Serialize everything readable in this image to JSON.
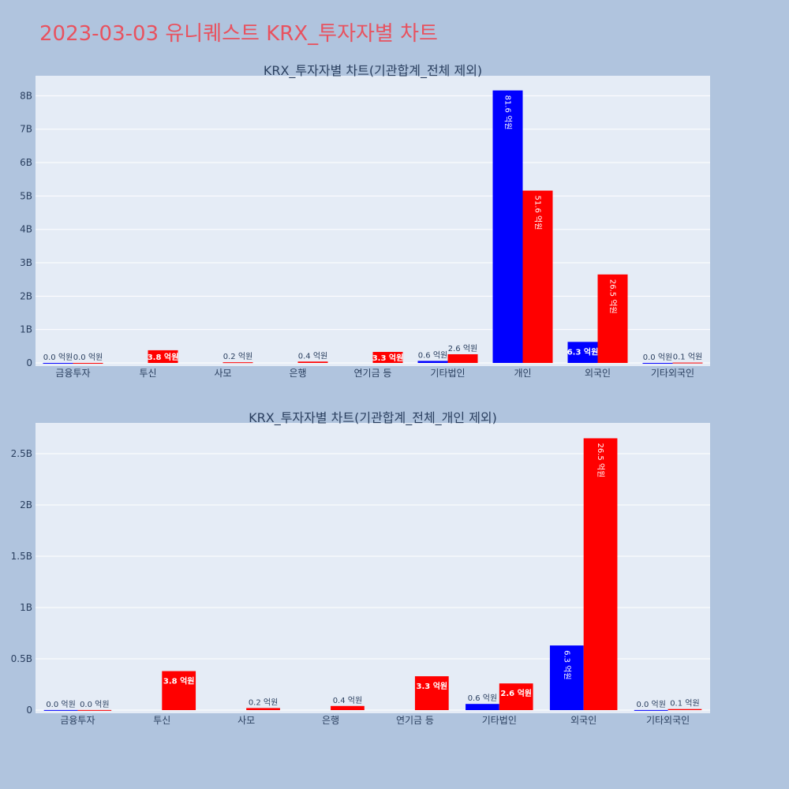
{
  "page": {
    "title": "2023-03-03 유니퀘스트 KRX_투자자별 차트"
  },
  "colors": {
    "background": "#b0c4de",
    "plot_bg": "#e5ecf6",
    "sell": "#0000ff",
    "buy": "#ff0000",
    "title": "#e8525f"
  },
  "chart_data": [
    {
      "type": "bar",
      "title": "KRX_투자자별 차트(기관합계_전체 제외)",
      "categories": [
        "금융투자",
        "투신",
        "사모",
        "은행",
        "연기금 등",
        "기타법인",
        "개인",
        "외국인",
        "기타외국인"
      ],
      "series": [
        {
          "color": "#0000ff",
          "values": [
            0.001,
            0,
            0,
            0,
            0,
            0.06,
            8.16,
            0.63,
            0.001
          ],
          "labels": [
            "0.0 억원",
            "",
            "",
            "",
            "",
            "0.6 억원",
            "81.6 억원",
            "6.3 억원",
            "0.0 억원"
          ]
        },
        {
          "color": "#ff0000",
          "values": [
            0.001,
            0.38,
            0.02,
            0.04,
            0.33,
            0.26,
            5.16,
            2.65,
            0.01
          ],
          "labels": [
            "0.0 억원",
            "3.8 억원",
            "0.2 억원",
            "0.4 억원",
            "3.3 억원",
            "2.6 억원",
            "51.6 억원",
            "26.5 억원",
            "0.1 억원"
          ]
        }
      ],
      "ylim": [
        0,
        8.6
      ],
      "yticks": [
        0,
        1,
        2,
        3,
        4,
        5,
        6,
        7,
        8
      ],
      "ytick_labels": [
        "0",
        "1B",
        "2B",
        "3B",
        "4B",
        "5B",
        "6B",
        "7B",
        "8B"
      ],
      "grid": true
    },
    {
      "type": "bar",
      "title": "KRX_투자자별 차트(기관합계_전체_개인 제외)",
      "categories": [
        "금융투자",
        "투신",
        "사모",
        "은행",
        "연기금 등",
        "기타법인",
        "외국인",
        "기타외국인"
      ],
      "series": [
        {
          "color": "#0000ff",
          "values": [
            0.001,
            0,
            0,
            0,
            0,
            0.06,
            0.63,
            0.001
          ],
          "labels": [
            "0.0 억원",
            "",
            "",
            "",
            "",
            "0.6 억원",
            "6.3 억원",
            "0.0 억원"
          ]
        },
        {
          "color": "#ff0000",
          "values": [
            0.001,
            0.38,
            0.02,
            0.04,
            0.33,
            0.26,
            2.65,
            0.01
          ],
          "labels": [
            "0.0 억원",
            "3.8 억원",
            "0.2 억원",
            "0.4 억원",
            "3.3 억원",
            "2.6 억원",
            "26.5 억원",
            "0.1 억원"
          ]
        }
      ],
      "ylim": [
        0,
        2.8
      ],
      "yticks": [
        0,
        0.5,
        1,
        1.5,
        2,
        2.5
      ],
      "ytick_labels": [
        "0",
        "0.5B",
        "1B",
        "1.5B",
        "2B",
        "2.5B"
      ],
      "grid": true
    }
  ]
}
